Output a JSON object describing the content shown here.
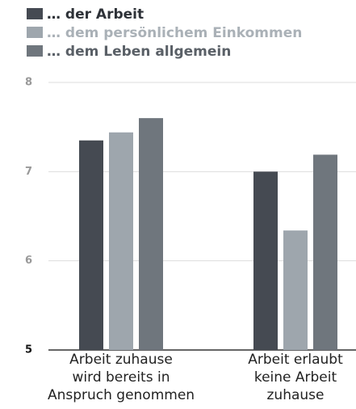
{
  "chart_data": {
    "type": "bar",
    "categories": [
      "Arbeit zuhause\nwird bereits in\nAnspruch genommen",
      "Arbeit erlaubt\nkeine Arbeit\nzuhause"
    ],
    "series": [
      {
        "name": "… der Arbeit",
        "color": "#454a52",
        "values": [
          7.35,
          7.0
        ]
      },
      {
        "name": "… dem persönlichem Einkommen",
        "color": "#9ea6ad",
        "values": [
          7.44,
          6.34
        ]
      },
      {
        "name": "… dem Leben allgemein",
        "color": "#6f767d",
        "values": [
          7.6,
          7.19
        ]
      }
    ],
    "ylim": [
      5,
      8
    ],
    "yticks": [
      5,
      6,
      7,
      8
    ],
    "grid": true
  }
}
